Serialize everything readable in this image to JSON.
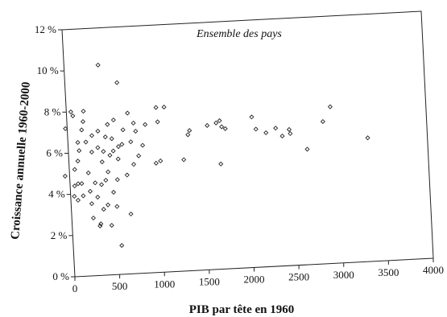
{
  "chart_data": {
    "type": "scatter",
    "title": "Ensemble des pays",
    "xlabel": "PIB par tête en 1960",
    "ylabel": "Croissance annuelle 1960-2000",
    "xlim": [
      0,
      4000
    ],
    "ylim": [
      0,
      12
    ],
    "xticks": [
      {
        "value": 0,
        "label": "0"
      },
      {
        "value": 500,
        "label": "500"
      },
      {
        "value": 1000,
        "label": "1000"
      },
      {
        "value": 1500,
        "label": "1500"
      },
      {
        "value": 2000,
        "label": "2000"
      },
      {
        "value": 2500,
        "label": "2500"
      },
      {
        "value": 3000,
        "label": "3000"
      },
      {
        "value": 3500,
        "label": "3500"
      },
      {
        "value": 4000,
        "label": "4000"
      }
    ],
    "yticks": [
      {
        "value": 0,
        "label": "0 %"
      },
      {
        "value": 2,
        "label": "2 %"
      },
      {
        "value": 4,
        "label": "4 %"
      },
      {
        "value": 6,
        "label": "6 %"
      },
      {
        "value": 8,
        "label": "8 %"
      },
      {
        "value": 10,
        "label": "10 %"
      },
      {
        "value": 12,
        "label": "12 %"
      }
    ],
    "grid": false,
    "marker": "diamond",
    "points": [
      {
        "x": -50,
        "y": 4.9
      },
      {
        "x": -20,
        "y": 7.2
      },
      {
        "x": 50,
        "y": 8.0
      },
      {
        "x": 70,
        "y": 7.8
      },
      {
        "x": 60,
        "y": 5.2
      },
      {
        "x": 50,
        "y": 4.4
      },
      {
        "x": 40,
        "y": 3.9
      },
      {
        "x": 80,
        "y": 3.7
      },
      {
        "x": 90,
        "y": 4.5
      },
      {
        "x": 100,
        "y": 5.6
      },
      {
        "x": 110,
        "y": 6.5
      },
      {
        "x": 120,
        "y": 6.1
      },
      {
        "x": 130,
        "y": 4.5
      },
      {
        "x": 140,
        "y": 3.9
      },
      {
        "x": 160,
        "y": 7.1
      },
      {
        "x": 180,
        "y": 7.5
      },
      {
        "x": 190,
        "y": 8.0
      },
      {
        "x": 200,
        "y": 6.5
      },
      {
        "x": 210,
        "y": 5.0
      },
      {
        "x": 220,
        "y": 4.1
      },
      {
        "x": 230,
        "y": 3.5
      },
      {
        "x": 240,
        "y": 2.8
      },
      {
        "x": 260,
        "y": 6.0
      },
      {
        "x": 270,
        "y": 6.8
      },
      {
        "x": 280,
        "y": 4.5
      },
      {
        "x": 300,
        "y": 3.8
      },
      {
        "x": 310,
        "y": 2.4
      },
      {
        "x": 320,
        "y": 2.5
      },
      {
        "x": 330,
        "y": 6.2
      },
      {
        "x": 340,
        "y": 7.0
      },
      {
        "x": 350,
        "y": 4.4
      },
      {
        "x": 360,
        "y": 3.2
      },
      {
        "x": 370,
        "y": 5.5
      },
      {
        "x": 380,
        "y": 10.2
      },
      {
        "x": 390,
        "y": 6.0
      },
      {
        "x": 400,
        "y": 4.6
      },
      {
        "x": 410,
        "y": 3.4
      },
      {
        "x": 420,
        "y": 6.7
      },
      {
        "x": 430,
        "y": 5.0
      },
      {
        "x": 440,
        "y": 2.4
      },
      {
        "x": 450,
        "y": 7.3
      },
      {
        "x": 460,
        "y": 5.8
      },
      {
        "x": 480,
        "y": 4.0
      },
      {
        "x": 490,
        "y": 6.6
      },
      {
        "x": 500,
        "y": 6.0
      },
      {
        "x": 510,
        "y": 3.3
      },
      {
        "x": 520,
        "y": 7.5
      },
      {
        "x": 530,
        "y": 4.6
      },
      {
        "x": 540,
        "y": 1.4
      },
      {
        "x": 550,
        "y": 5.6
      },
      {
        "x": 560,
        "y": 6.2
      },
      {
        "x": 580,
        "y": 9.3
      },
      {
        "x": 600,
        "y": 6.3
      },
      {
        "x": 620,
        "y": 7.0
      },
      {
        "x": 640,
        "y": 4.8
      },
      {
        "x": 660,
        "y": 2.9
      },
      {
        "x": 680,
        "y": 7.8
      },
      {
        "x": 700,
        "y": 6.4
      },
      {
        "x": 720,
        "y": 5.3
      },
      {
        "x": 740,
        "y": 7.3
      },
      {
        "x": 760,
        "y": 6.9
      },
      {
        "x": 780,
        "y": 5.7
      },
      {
        "x": 830,
        "y": 6.2
      },
      {
        "x": 870,
        "y": 7.2
      },
      {
        "x": 970,
        "y": 5.3
      },
      {
        "x": 1000,
        "y": 8.0
      },
      {
        "x": 1010,
        "y": 7.3
      },
      {
        "x": 1020,
        "y": 5.4
      },
      {
        "x": 1090,
        "y": 8.0
      },
      {
        "x": 1280,
        "y": 5.4
      },
      {
        "x": 1340,
        "y": 6.6
      },
      {
        "x": 1360,
        "y": 6.8
      },
      {
        "x": 1560,
        "y": 7.0
      },
      {
        "x": 1660,
        "y": 7.1
      },
      {
        "x": 1690,
        "y": 5.1
      },
      {
        "x": 1700,
        "y": 7.2
      },
      {
        "x": 1720,
        "y": 6.9
      },
      {
        "x": 1760,
        "y": 6.8
      },
      {
        "x": 2060,
        "y": 7.3
      },
      {
        "x": 2100,
        "y": 6.7
      },
      {
        "x": 2210,
        "y": 6.5
      },
      {
        "x": 2320,
        "y": 6.7
      },
      {
        "x": 2390,
        "y": 6.3
      },
      {
        "x": 2470,
        "y": 6.6
      },
      {
        "x": 2480,
        "y": 6.4
      },
      {
        "x": 2660,
        "y": 5.6
      },
      {
        "x": 2850,
        "y": 6.9
      },
      {
        "x": 2940,
        "y": 7.6
      },
      {
        "x": 3340,
        "y": 6.0
      }
    ]
  }
}
